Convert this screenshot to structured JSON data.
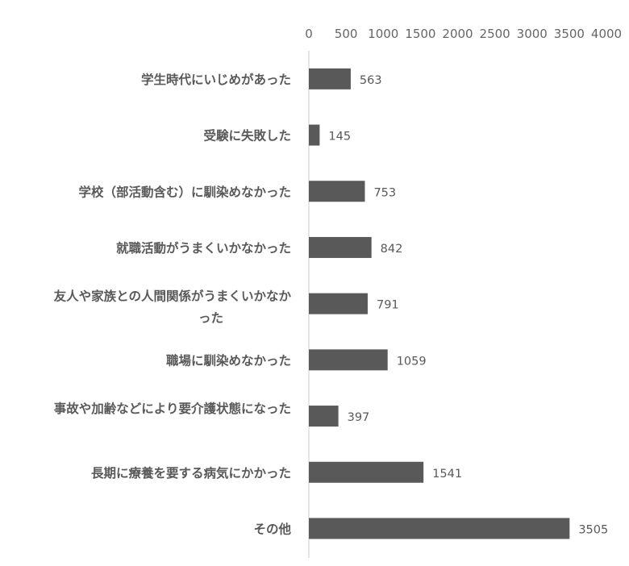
{
  "chart_data": {
    "type": "bar",
    "orientation": "horizontal",
    "categories": [
      "学生時代にいじめがあった",
      "受験に失敗した",
      "学校（部活動含む）に馴染めなかった",
      "就職活動がうまくいかなかった",
      "友人や家族との人間関係がうまくいかなかった",
      "職場に馴染めなかった",
      "事故や加齢などにより要介護状態になった",
      "長期に療養を要する病気にかかった",
      "その他"
    ],
    "values": [
      563,
      145,
      753,
      842,
      791,
      1059,
      397,
      1541,
      3505
    ],
    "xlim": [
      0,
      4000
    ],
    "x_ticks": [
      0,
      500,
      1000,
      1500,
      2000,
      2500,
      3000,
      3500,
      4000
    ],
    "tick_labels": [
      "0",
      "500",
      "1000",
      "1500",
      "2000",
      "2500",
      "3000",
      "3500",
      "4000"
    ],
    "axis_position": "top",
    "gridlines": false,
    "legend": "none",
    "bar_color": "#595959",
    "axis_color": "#d9d9d9",
    "title": "",
    "xlabel": "",
    "ylabel": ""
  }
}
